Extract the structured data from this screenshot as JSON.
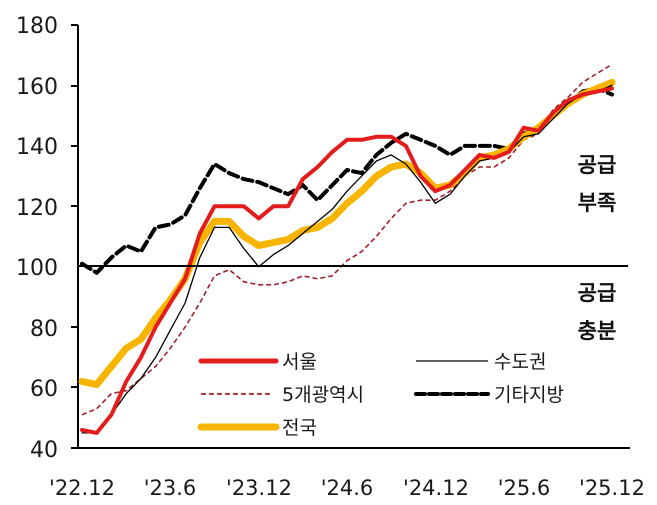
{
  "chart_data": {
    "type": "line",
    "title": "",
    "xlabel": "",
    "ylabel": "",
    "ylim": [
      40,
      180
    ],
    "yticks": [
      40,
      60,
      80,
      100,
      120,
      140,
      160,
      180
    ],
    "xtick_labels": [
      "'22.12",
      "'23.6",
      "'23.12",
      "'24.6",
      "'24.12",
      "'25.6",
      "'25.12"
    ],
    "x": [
      "'22.12",
      "'23.1",
      "'23.2",
      "'23.3",
      "'23.4",
      "'23.5",
      "'23.6",
      "'23.7",
      "'23.8",
      "'23.9",
      "'23.10",
      "'23.11",
      "'23.12",
      "'24.1",
      "'24.2",
      "'24.3",
      "'24.4",
      "'24.5",
      "'24.6",
      "'24.7",
      "'24.8",
      "'24.9",
      "'24.10",
      "'24.11",
      "'24.12",
      "'25.1",
      "'25.2",
      "'25.3",
      "'25.4",
      "'25.5",
      "'25.6",
      "'25.7",
      "'25.8",
      "'25.9",
      "'25.10",
      "'25.11",
      "'25.12"
    ],
    "reference_line": {
      "y": 100,
      "label_above": "공급\n부족",
      "label_below": "공급\n충분"
    },
    "grid": false,
    "legend_position": "lower right inside",
    "series": [
      {
        "name": "서울",
        "style": "solid thick",
        "color": "#e31c1c",
        "values": [
          46,
          45,
          51,
          62,
          70,
          80,
          88,
          96,
          111,
          120,
          120,
          120,
          116,
          120,
          120,
          129,
          133,
          138,
          142,
          142,
          143,
          143,
          140,
          130,
          125,
          127,
          132,
          137,
          136,
          138,
          146,
          145,
          151,
          155,
          157,
          158,
          159
        ]
      },
      {
        "name": "수도권",
        "style": "solid thin",
        "color": "#000000",
        "values": [
          45,
          45,
          51,
          58,
          63,
          70,
          79,
          88,
          103,
          113,
          113,
          106,
          100,
          104,
          107,
          111,
          115,
          119,
          125,
          130,
          135,
          137,
          134,
          128,
          121,
          124,
          130,
          135,
          136,
          138,
          143,
          144,
          149,
          154,
          157,
          158,
          160
        ]
      },
      {
        "name": "5개광역시",
        "style": "dashed thin",
        "color": "#a0202a",
        "values": [
          51,
          53,
          58,
          59,
          63,
          67,
          73,
          80,
          88,
          97,
          99,
          95,
          94,
          94,
          95,
          97,
          96,
          97,
          102,
          105,
          110,
          116,
          121,
          122,
          122,
          125,
          130,
          133,
          133,
          136,
          142,
          144,
          152,
          156,
          161,
          164,
          167
        ]
      },
      {
        "name": "기타지방",
        "style": "dashed thick",
        "color": "#000000",
        "values": [
          101,
          98,
          103,
          107,
          105,
          113,
          114,
          117,
          126,
          134,
          131,
          129,
          128,
          126,
          124,
          127,
          122,
          127,
          132,
          131,
          137,
          141,
          144,
          142,
          140,
          137,
          140,
          140,
          140,
          139,
          144,
          146,
          150,
          154,
          158,
          159,
          157
        ]
      },
      {
        "name": "전국",
        "style": "solid extra-thick",
        "color": "#f7b500",
        "values": [
          62,
          61,
          67,
          73,
          76,
          83,
          89,
          96,
          108,
          115,
          115,
          110,
          107,
          108,
          109,
          112,
          113,
          116,
          121,
          125,
          130,
          133,
          134,
          131,
          126,
          127,
          131,
          136,
          137,
          139,
          143,
          146,
          150,
          154,
          157,
          159,
          161
        ]
      }
    ]
  },
  "axes": {
    "y_ticks": [
      "180",
      "160",
      "140",
      "120",
      "100",
      "80",
      "60",
      "40"
    ],
    "x_ticks": [
      "'22.12",
      "'23.6",
      "'23.12",
      "'24.6",
      "'24.12",
      "'25.6",
      "'25.12"
    ]
  },
  "annotations": {
    "above_line_1": "공급",
    "above_line_2": "부족",
    "below_line_1": "공급",
    "below_line_2": "충분"
  },
  "legend": {
    "seoul": "서울",
    "capital_area": "수도권",
    "five_metros": "5개광역시",
    "other_regions": "기타지방",
    "nationwide": "전국"
  },
  "colors": {
    "seoul": "#e31c1c",
    "capital_area": "#000000",
    "five_metros": "#a0202a",
    "other_regions": "#000000",
    "nationwide": "#f7b500",
    "axis": "#000000"
  }
}
